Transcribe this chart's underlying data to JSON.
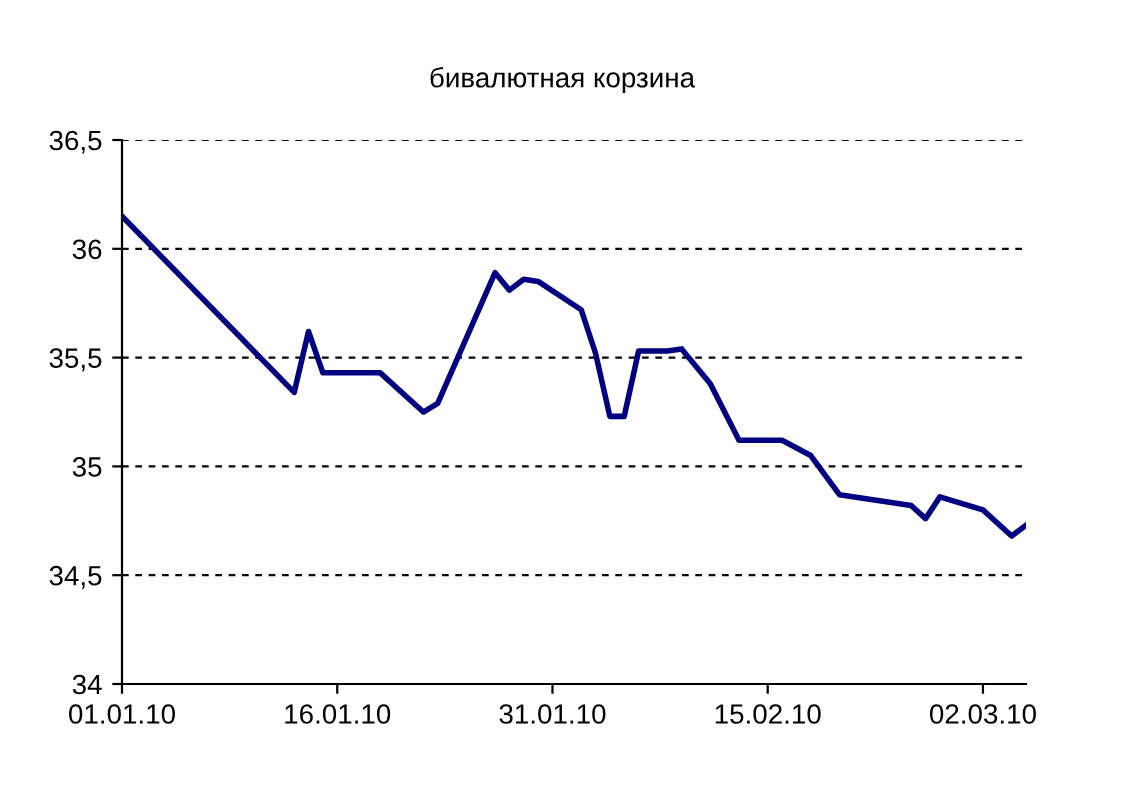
{
  "chart_data": {
    "type": "line",
    "title": "бивалютная корзина",
    "x": [
      "2010-01-01",
      "2010-01-13",
      "2010-01-14",
      "2010-01-15",
      "2010-01-19",
      "2010-01-22",
      "2010-01-23",
      "2010-01-27",
      "2010-01-28",
      "2010-01-29",
      "2010-01-30",
      "2010-02-02",
      "2010-02-03",
      "2010-02-04",
      "2010-02-05",
      "2010-02-06",
      "2010-02-08",
      "2010-02-09",
      "2010-02-11",
      "2010-02-13",
      "2010-02-16",
      "2010-02-18",
      "2010-02-20",
      "2010-02-25",
      "2010-02-26",
      "2010-02-27",
      "2010-03-02",
      "2010-03-04",
      "2010-03-05"
    ],
    "series": [
      {
        "color": "#000080",
        "values": [
          36.15,
          35.34,
          35.62,
          35.43,
          35.43,
          35.25,
          35.29,
          35.89,
          35.81,
          35.86,
          35.85,
          35.72,
          35.52,
          35.23,
          35.23,
          35.53,
          35.53,
          35.54,
          35.38,
          35.12,
          35.12,
          35.05,
          34.87,
          34.82,
          34.76,
          34.86,
          34.8,
          34.68,
          34.73
        ]
      }
    ],
    "xlim": [
      "2010-01-01",
      "2010-03-05"
    ],
    "xticks": [
      {
        "value": "2010-01-01",
        "label": "01.01.10"
      },
      {
        "value": "2010-01-16",
        "label": "16.01.10"
      },
      {
        "value": "2010-01-31",
        "label": "31.01.10"
      },
      {
        "value": "2010-02-15",
        "label": "15.02.10"
      },
      {
        "value": "2010-03-02",
        "label": "02.03.10"
      }
    ],
    "ylim": [
      34,
      36.5
    ],
    "yticks": [
      {
        "value": 34,
        "label": "34"
      },
      {
        "value": 34.5,
        "label": "34,5"
      },
      {
        "value": 35,
        "label": "35"
      },
      {
        "value": 35.5,
        "label": "35,5"
      },
      {
        "value": 36,
        "label": "36"
      },
      {
        "value": 36.5,
        "label": "36,5"
      }
    ],
    "grid": "y",
    "line_style": "solid",
    "marker": "none"
  }
}
